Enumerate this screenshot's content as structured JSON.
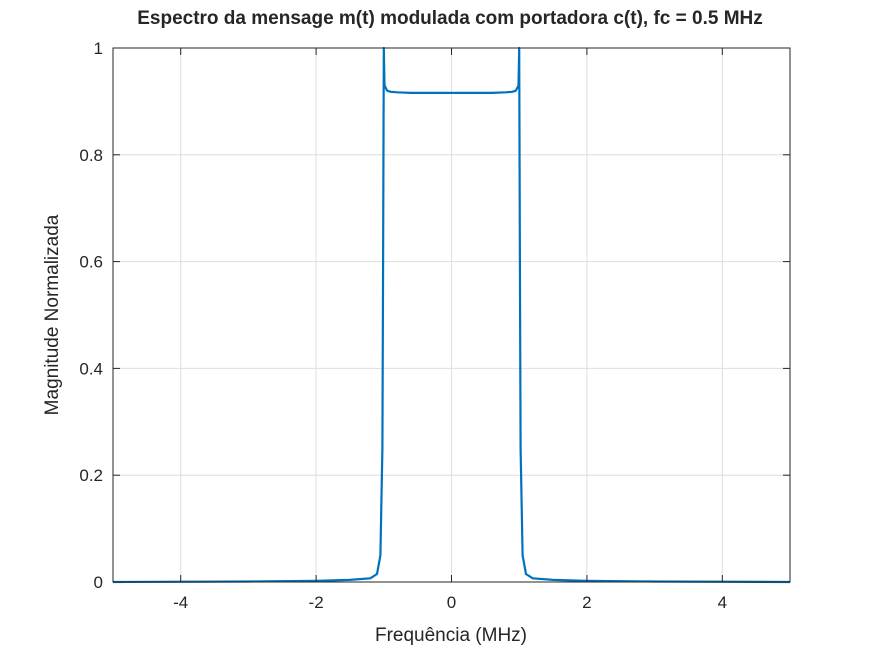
{
  "chart_data": {
    "type": "line",
    "title": "Espectro da mensage m(t) modulada com portadora c(t), fc = 0.5 MHz",
    "xlabel": "Frequência (MHz)",
    "ylabel": "Magnitude Normalizada",
    "xlim": [
      -5,
      5
    ],
    "ylim": [
      0,
      1
    ],
    "x_ticks": [
      -4,
      -2,
      0,
      2,
      4
    ],
    "x_tick_labels": [
      "-4",
      "-2",
      "0",
      "2",
      "4"
    ],
    "y_ticks": [
      0,
      0.2,
      0.4,
      0.6,
      0.8,
      1
    ],
    "y_tick_labels": [
      "0",
      "0.2",
      "0.4",
      "0.6",
      "0.8",
      "1"
    ],
    "grid": true,
    "line_color": "#0072BD",
    "series": [
      {
        "x": [
          -5,
          -3,
          -2,
          -1.5,
          -1.2,
          -1.1,
          -1.05,
          -1.02,
          -1.01,
          -1.0,
          -0.99,
          -0.97,
          -0.95,
          -0.9,
          -0.8,
          -0.6,
          -0.3,
          0,
          0.3,
          0.6,
          0.8,
          0.9,
          0.95,
          0.97,
          0.99,
          1.0,
          1.01,
          1.02,
          1.05,
          1.1,
          1.2,
          1.5,
          2,
          3,
          5
        ],
        "y": [
          0.0,
          0.001,
          0.002,
          0.004,
          0.007,
          0.015,
          0.05,
          0.25,
          0.6,
          1.0,
          0.93,
          0.925,
          0.92,
          0.918,
          0.917,
          0.916,
          0.916,
          0.916,
          0.916,
          0.916,
          0.917,
          0.918,
          0.92,
          0.925,
          0.93,
          1.0,
          0.6,
          0.25,
          0.05,
          0.015,
          0.007,
          0.004,
          0.002,
          0.001,
          0.0
        ]
      }
    ]
  }
}
